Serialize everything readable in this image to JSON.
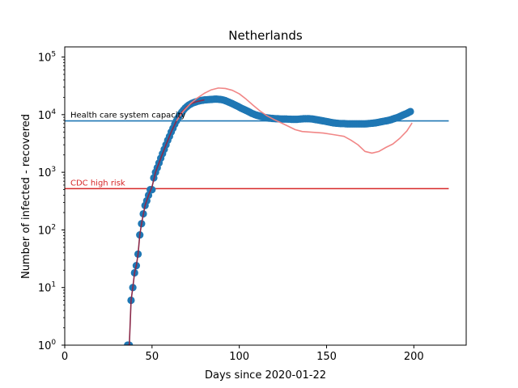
{
  "chart_data": {
    "type": "scatter",
    "title": "Netherlands",
    "xlabel": "Days since 2020-01-22",
    "ylabel": "Number of infected - recovered",
    "xlim": [
      0,
      230
    ],
    "ylim": [
      1,
      150000
    ],
    "yscale": "log",
    "grid": false,
    "x_ticks": [
      0,
      50,
      100,
      150,
      200
    ],
    "y_ticks": [
      {
        "value": 1,
        "base": "10",
        "exp": "0"
      },
      {
        "value": 10,
        "base": "10",
        "exp": "1"
      },
      {
        "value": 100,
        "base": "10",
        "exp": "2"
      },
      {
        "value": 1000,
        "base": "10",
        "exp": "3"
      },
      {
        "value": 10000,
        "base": "10",
        "exp": "4"
      },
      {
        "value": 100000,
        "base": "10",
        "exp": "5"
      }
    ],
    "reference_lines": [
      {
        "label": "Health care system capacity",
        "y": 7800,
        "x_from": 0,
        "x_to": 220,
        "color": "#1f77b4"
      },
      {
        "label": "CDC high risk",
        "y": 520,
        "x_from": 0,
        "x_to": 220,
        "color": "#d62728"
      }
    ],
    "series": [
      {
        "kind": "points",
        "color": "#1f77b4",
        "points": [
          [
            36,
            1
          ],
          [
            37,
            1
          ],
          [
            38,
            6
          ],
          [
            39,
            10
          ],
          [
            40,
            18
          ],
          [
            41,
            24
          ],
          [
            42,
            38
          ],
          [
            43,
            82
          ],
          [
            44,
            128
          ],
          [
            45,
            190
          ],
          [
            46,
            265
          ],
          [
            47,
            320
          ],
          [
            48,
            400
          ],
          [
            49,
            500
          ],
          [
            50,
            500
          ],
          [
            51,
            800
          ],
          [
            52,
            1000
          ],
          [
            53,
            1200
          ],
          [
            54,
            1450
          ],
          [
            55,
            1750
          ],
          [
            56,
            2100
          ],
          [
            57,
            2500
          ],
          [
            58,
            3000
          ],
          [
            59,
            3600
          ],
          [
            60,
            4200
          ],
          [
            61,
            5000
          ],
          [
            62,
            5800
          ],
          [
            63,
            6800
          ],
          [
            64,
            7800
          ],
          [
            65,
            8800
          ],
          [
            66,
            10000
          ],
          [
            67,
            11000
          ],
          [
            68,
            12000
          ],
          [
            69,
            13000
          ],
          [
            70,
            13800
          ],
          [
            71,
            14600
          ],
          [
            72,
            15200
          ],
          [
            73,
            15800
          ],
          [
            74,
            16200
          ],
          [
            75,
            16600
          ],
          [
            76,
            17000
          ],
          [
            77,
            17300
          ],
          [
            78,
            17600
          ],
          [
            79,
            17800
          ],
          [
            80,
            18000
          ],
          [
            81,
            18100
          ],
          [
            82,
            18200
          ],
          [
            83,
            18300
          ],
          [
            84,
            18400
          ],
          [
            85,
            18500
          ],
          [
            86,
            18600
          ],
          [
            87,
            18600
          ],
          [
            88,
            18500
          ],
          [
            89,
            18400
          ],
          [
            90,
            18200
          ],
          [
            91,
            17900
          ],
          [
            92,
            17500
          ],
          [
            93,
            17000
          ],
          [
            94,
            16500
          ],
          [
            95,
            16000
          ],
          [
            96,
            15500
          ],
          [
            97,
            15000
          ],
          [
            98,
            14500
          ],
          [
            99,
            14000
          ],
          [
            100,
            13500
          ],
          [
            101,
            13000
          ],
          [
            102,
            12600
          ],
          [
            103,
            12200
          ],
          [
            104,
            11800
          ],
          [
            105,
            11400
          ],
          [
            106,
            11000
          ],
          [
            107,
            10600
          ],
          [
            108,
            10300
          ],
          [
            109,
            10000
          ],
          [
            110,
            9800
          ],
          [
            111,
            9600
          ],
          [
            112,
            9400
          ],
          [
            113,
            9200
          ],
          [
            114,
            9000
          ],
          [
            115,
            8900
          ],
          [
            116,
            8800
          ],
          [
            117,
            8700
          ],
          [
            118,
            8650
          ],
          [
            119,
            8600
          ],
          [
            120,
            8550
          ],
          [
            121,
            8500
          ],
          [
            122,
            8500
          ],
          [
            123,
            8450
          ],
          [
            124,
            8400
          ],
          [
            125,
            8400
          ],
          [
            126,
            8400
          ],
          [
            127,
            8400
          ],
          [
            128,
            8350
          ],
          [
            129,
            8350
          ],
          [
            130,
            8300
          ],
          [
            131,
            8300
          ],
          [
            132,
            8300
          ],
          [
            133,
            8300
          ],
          [
            134,
            8350
          ],
          [
            135,
            8400
          ],
          [
            136,
            8450
          ],
          [
            137,
            8500
          ],
          [
            138,
            8500
          ],
          [
            139,
            8500
          ],
          [
            140,
            8500
          ],
          [
            141,
            8450
          ],
          [
            142,
            8400
          ],
          [
            143,
            8300
          ],
          [
            144,
            8200
          ],
          [
            145,
            8100
          ],
          [
            146,
            8000
          ],
          [
            147,
            7900
          ],
          [
            148,
            7800
          ],
          [
            149,
            7700
          ],
          [
            150,
            7600
          ],
          [
            151,
            7500
          ],
          [
            152,
            7400
          ],
          [
            153,
            7300
          ],
          [
            154,
            7200
          ],
          [
            155,
            7150
          ],
          [
            156,
            7100
          ],
          [
            157,
            7050
          ],
          [
            158,
            7000
          ],
          [
            159,
            7000
          ],
          [
            160,
            7000
          ],
          [
            161,
            6950
          ],
          [
            162,
            6900
          ],
          [
            163,
            6900
          ],
          [
            164,
            6900
          ],
          [
            165,
            6900
          ],
          [
            166,
            6900
          ],
          [
            167,
            6900
          ],
          [
            168,
            6900
          ],
          [
            169,
            6900
          ],
          [
            170,
            6900
          ],
          [
            171,
            6900
          ],
          [
            172,
            6900
          ],
          [
            173,
            6950
          ],
          [
            174,
            7000
          ],
          [
            175,
            7050
          ],
          [
            176,
            7100
          ],
          [
            177,
            7150
          ],
          [
            178,
            7200
          ],
          [
            179,
            7300
          ],
          [
            180,
            7400
          ],
          [
            181,
            7500
          ],
          [
            182,
            7600
          ],
          [
            183,
            7700
          ],
          [
            184,
            7800
          ],
          [
            185,
            7900
          ],
          [
            186,
            8050
          ],
          [
            187,
            8200
          ],
          [
            188,
            8400
          ],
          [
            189,
            8600
          ],
          [
            190,
            8800
          ],
          [
            191,
            9000
          ],
          [
            192,
            9300
          ],
          [
            193,
            9600
          ],
          [
            194,
            9900
          ],
          [
            195,
            10200
          ],
          [
            196,
            10500
          ],
          [
            197,
            10900
          ],
          [
            198,
            11300
          ]
        ]
      },
      {
        "kind": "line",
        "color": "#8b2a4a",
        "points": [
          [
            36,
            1
          ],
          [
            37,
            1
          ],
          [
            38,
            6
          ],
          [
            39,
            10
          ],
          [
            40,
            18
          ],
          [
            41,
            24
          ],
          [
            42,
            38
          ],
          [
            43,
            82
          ],
          [
            44,
            128
          ],
          [
            46,
            265
          ],
          [
            48,
            400
          ],
          [
            50,
            560
          ],
          [
            52,
            1000
          ],
          [
            55,
            1750
          ],
          [
            58,
            3000
          ],
          [
            61,
            5000
          ],
          [
            64,
            7800
          ],
          [
            67,
            11000
          ],
          [
            70,
            13800
          ],
          [
            73,
            15800
          ],
          [
            76,
            17000
          ],
          [
            80,
            18000
          ]
        ]
      },
      {
        "kind": "line",
        "color": "#f08080",
        "points": [
          [
            64,
            7800
          ],
          [
            68,
            11500
          ],
          [
            72,
            15500
          ],
          [
            76,
            19500
          ],
          [
            80,
            23500
          ],
          [
            84,
            27000
          ],
          [
            88,
            29000
          ],
          [
            92,
            28500
          ],
          [
            96,
            26500
          ],
          [
            100,
            23000
          ],
          [
            104,
            18500
          ],
          [
            108,
            14500
          ],
          [
            112,
            11500
          ],
          [
            116,
            9500
          ],
          [
            120,
            8200
          ],
          [
            124,
            7200
          ],
          [
            128,
            6300
          ],
          [
            132,
            5500
          ],
          [
            136,
            5100
          ],
          [
            140,
            5000
          ],
          [
            144,
            4900
          ],
          [
            148,
            4800
          ],
          [
            152,
            4600
          ],
          [
            156,
            4400
          ],
          [
            160,
            4200
          ],
          [
            164,
            3600
          ],
          [
            168,
            3000
          ],
          [
            172,
            2300
          ],
          [
            176,
            2150
          ],
          [
            180,
            2300
          ],
          [
            184,
            2700
          ],
          [
            188,
            3100
          ],
          [
            192,
            3900
          ],
          [
            196,
            5200
          ],
          [
            199,
            7200
          ]
        ]
      }
    ]
  }
}
